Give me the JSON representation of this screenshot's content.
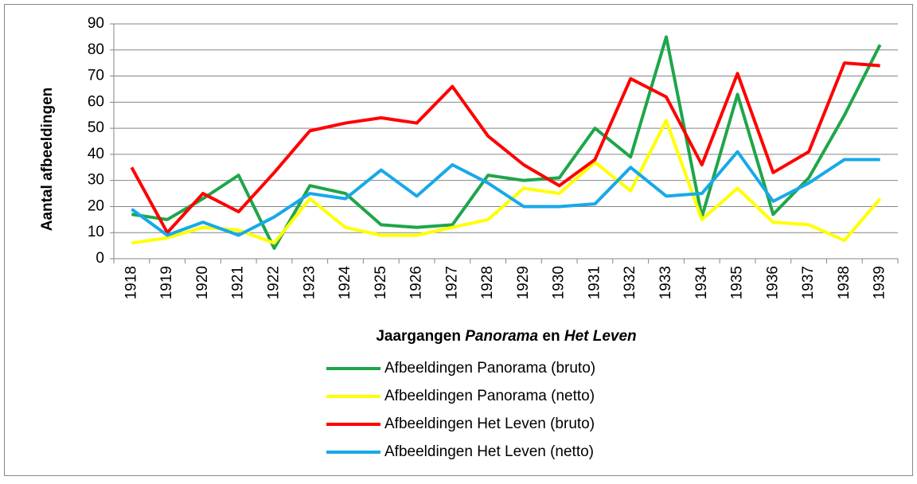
{
  "chart_data": {
    "type": "line",
    "y_label": "Aantal afbeeldingen",
    "x_label": [
      "Jaargangen ",
      "Panorama",
      " en ",
      "Het Leven"
    ],
    "categories": [
      "1918",
      "1919",
      "1920",
      "1921",
      "1922",
      "1923",
      "1924",
      "1925",
      "1926",
      "1927",
      "1928",
      "1929",
      "1930",
      "1931",
      "1932",
      "1933",
      "1934",
      "1935",
      "1936",
      "1937",
      "1938",
      "1939"
    ],
    "series": [
      {
        "name": "Afbeeldingen Panorama (bruto)",
        "color": "#1ea64a",
        "values": [
          17,
          15,
          23,
          32,
          4,
          28,
          25,
          13,
          12,
          13,
          32,
          30,
          31,
          50,
          39,
          85,
          16,
          63,
          17,
          31,
          55,
          82
        ]
      },
      {
        "name": "Afbeeldingen Panorama (netto)",
        "color": "#ffff00",
        "values": [
          6,
          8,
          12,
          11,
          6,
          23,
          12,
          9,
          9,
          12,
          15,
          27,
          25,
          37,
          26,
          53,
          15,
          27,
          14,
          13,
          7,
          23
        ]
      },
      {
        "name": "Afbeeldingen Het Leven (bruto)",
        "color": "#ff0000",
        "values": [
          35,
          10,
          25,
          18,
          33,
          49,
          52,
          54,
          52,
          66,
          47,
          36,
          28,
          38,
          69,
          62,
          36,
          71,
          33,
          41,
          75,
          74
        ]
      },
      {
        "name": "Afbeeldingen Het Leven (netto)",
        "color": "#17a9e8",
        "values": [
          19,
          9,
          14,
          9,
          16,
          25,
          23,
          34,
          24,
          36,
          29,
          20,
          20,
          21,
          35,
          24,
          25,
          41,
          22,
          29,
          38,
          38
        ]
      }
    ],
    "ylim": [
      0,
      90
    ],
    "yticks": [
      0,
      10,
      20,
      30,
      40,
      50,
      60,
      70,
      80,
      90
    ],
    "grid": true
  }
}
